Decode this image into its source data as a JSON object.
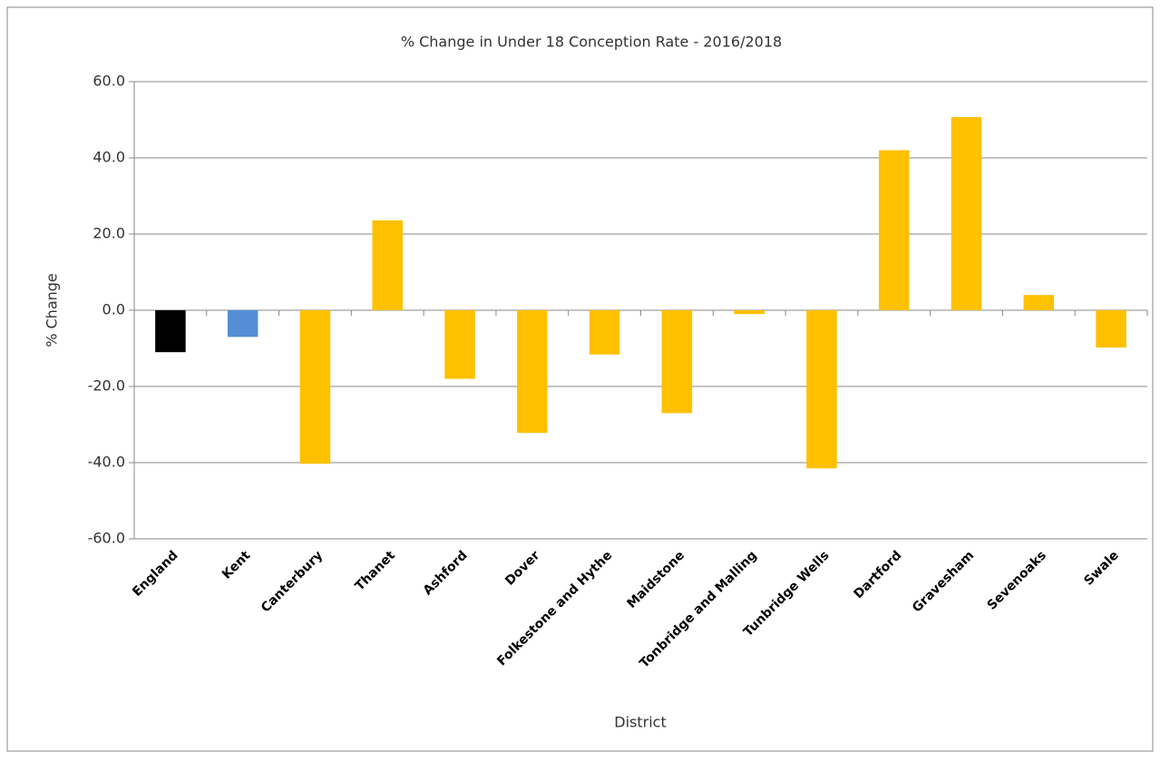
{
  "chart_data": {
    "type": "bar",
    "title": "% Change in Under 18 Conception Rate - 2016/2018",
    "x_label": "District",
    "y_label": "% Change",
    "categories": [
      "England",
      "Kent",
      "Canterbury",
      "Thanet",
      "Ashford",
      "Dover",
      "Folkestone and Hythe",
      "Maidstone",
      "Tonbridge and Malling",
      "Tunbridge Wells",
      "Dartford",
      "Gravesham",
      "Sevenoaks",
      "Swale"
    ],
    "values": [
      -11.0,
      -7.0,
      -40.3,
      23.6,
      -18.0,
      -32.2,
      -11.6,
      -27.0,
      -1.0,
      -41.5,
      42.0,
      50.7,
      4.0,
      -9.8
    ],
    "colors": [
      "#000000",
      "#558ed5",
      "#ffc000",
      "#ffc000",
      "#ffc000",
      "#ffc000",
      "#ffc000",
      "#ffc000",
      "#ffc000",
      "#ffc000",
      "#ffc000",
      "#ffc000",
      "#ffc000",
      "#ffc000"
    ],
    "ylim": [
      -60,
      60
    ],
    "yticks": [
      {
        "value": -60,
        "label": "-60.0"
      },
      {
        "value": -40,
        "label": "-40.0"
      },
      {
        "value": -20,
        "label": "-20.0"
      },
      {
        "value": 0,
        "label": "0.0"
      },
      {
        "value": 20,
        "label": "20.0"
      },
      {
        "value": 40,
        "label": "40.0"
      },
      {
        "value": 60,
        "label": "60.0"
      }
    ],
    "grid": true
  }
}
